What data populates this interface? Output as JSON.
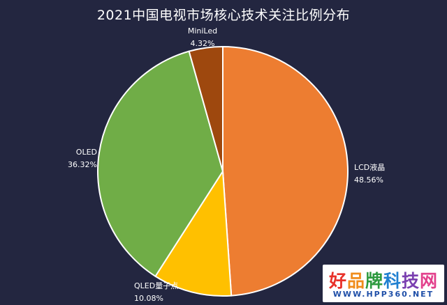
{
  "chart_data": {
    "type": "pie",
    "title": "2021中国电视市场核心技术关注比例分布",
    "slices": [
      {
        "label": "LCD液晶",
        "value": 48.56,
        "value_label": "48.56%",
        "color": "#ED7D31"
      },
      {
        "label": "QLED量子点",
        "value": 10.08,
        "value_label": "10.08%",
        "color": "#FFC000"
      },
      {
        "label": "OLED",
        "value": 36.32,
        "value_label": "36.32%",
        "color": "#70AD47"
      },
      {
        "label": "MiniLed",
        "value": 4.32,
        "value_label": "4.32%",
        "color": "#9E480E"
      }
    ],
    "start_angle_deg": 0,
    "direction": "clockwise"
  },
  "watermark": {
    "brand_chars": [
      {
        "ch": "好",
        "color": "#e8312a"
      },
      {
        "ch": "品",
        "color": "#f08c1b"
      },
      {
        "ch": "牌",
        "color": "#2e9a3f"
      },
      {
        "ch": "科",
        "color": "#1f7fd0"
      },
      {
        "ch": "技",
        "color": "#7a3fb0"
      },
      {
        "ch": "网",
        "color": "#e23f8b"
      }
    ],
    "url": "WWW.HPP360.NET"
  }
}
